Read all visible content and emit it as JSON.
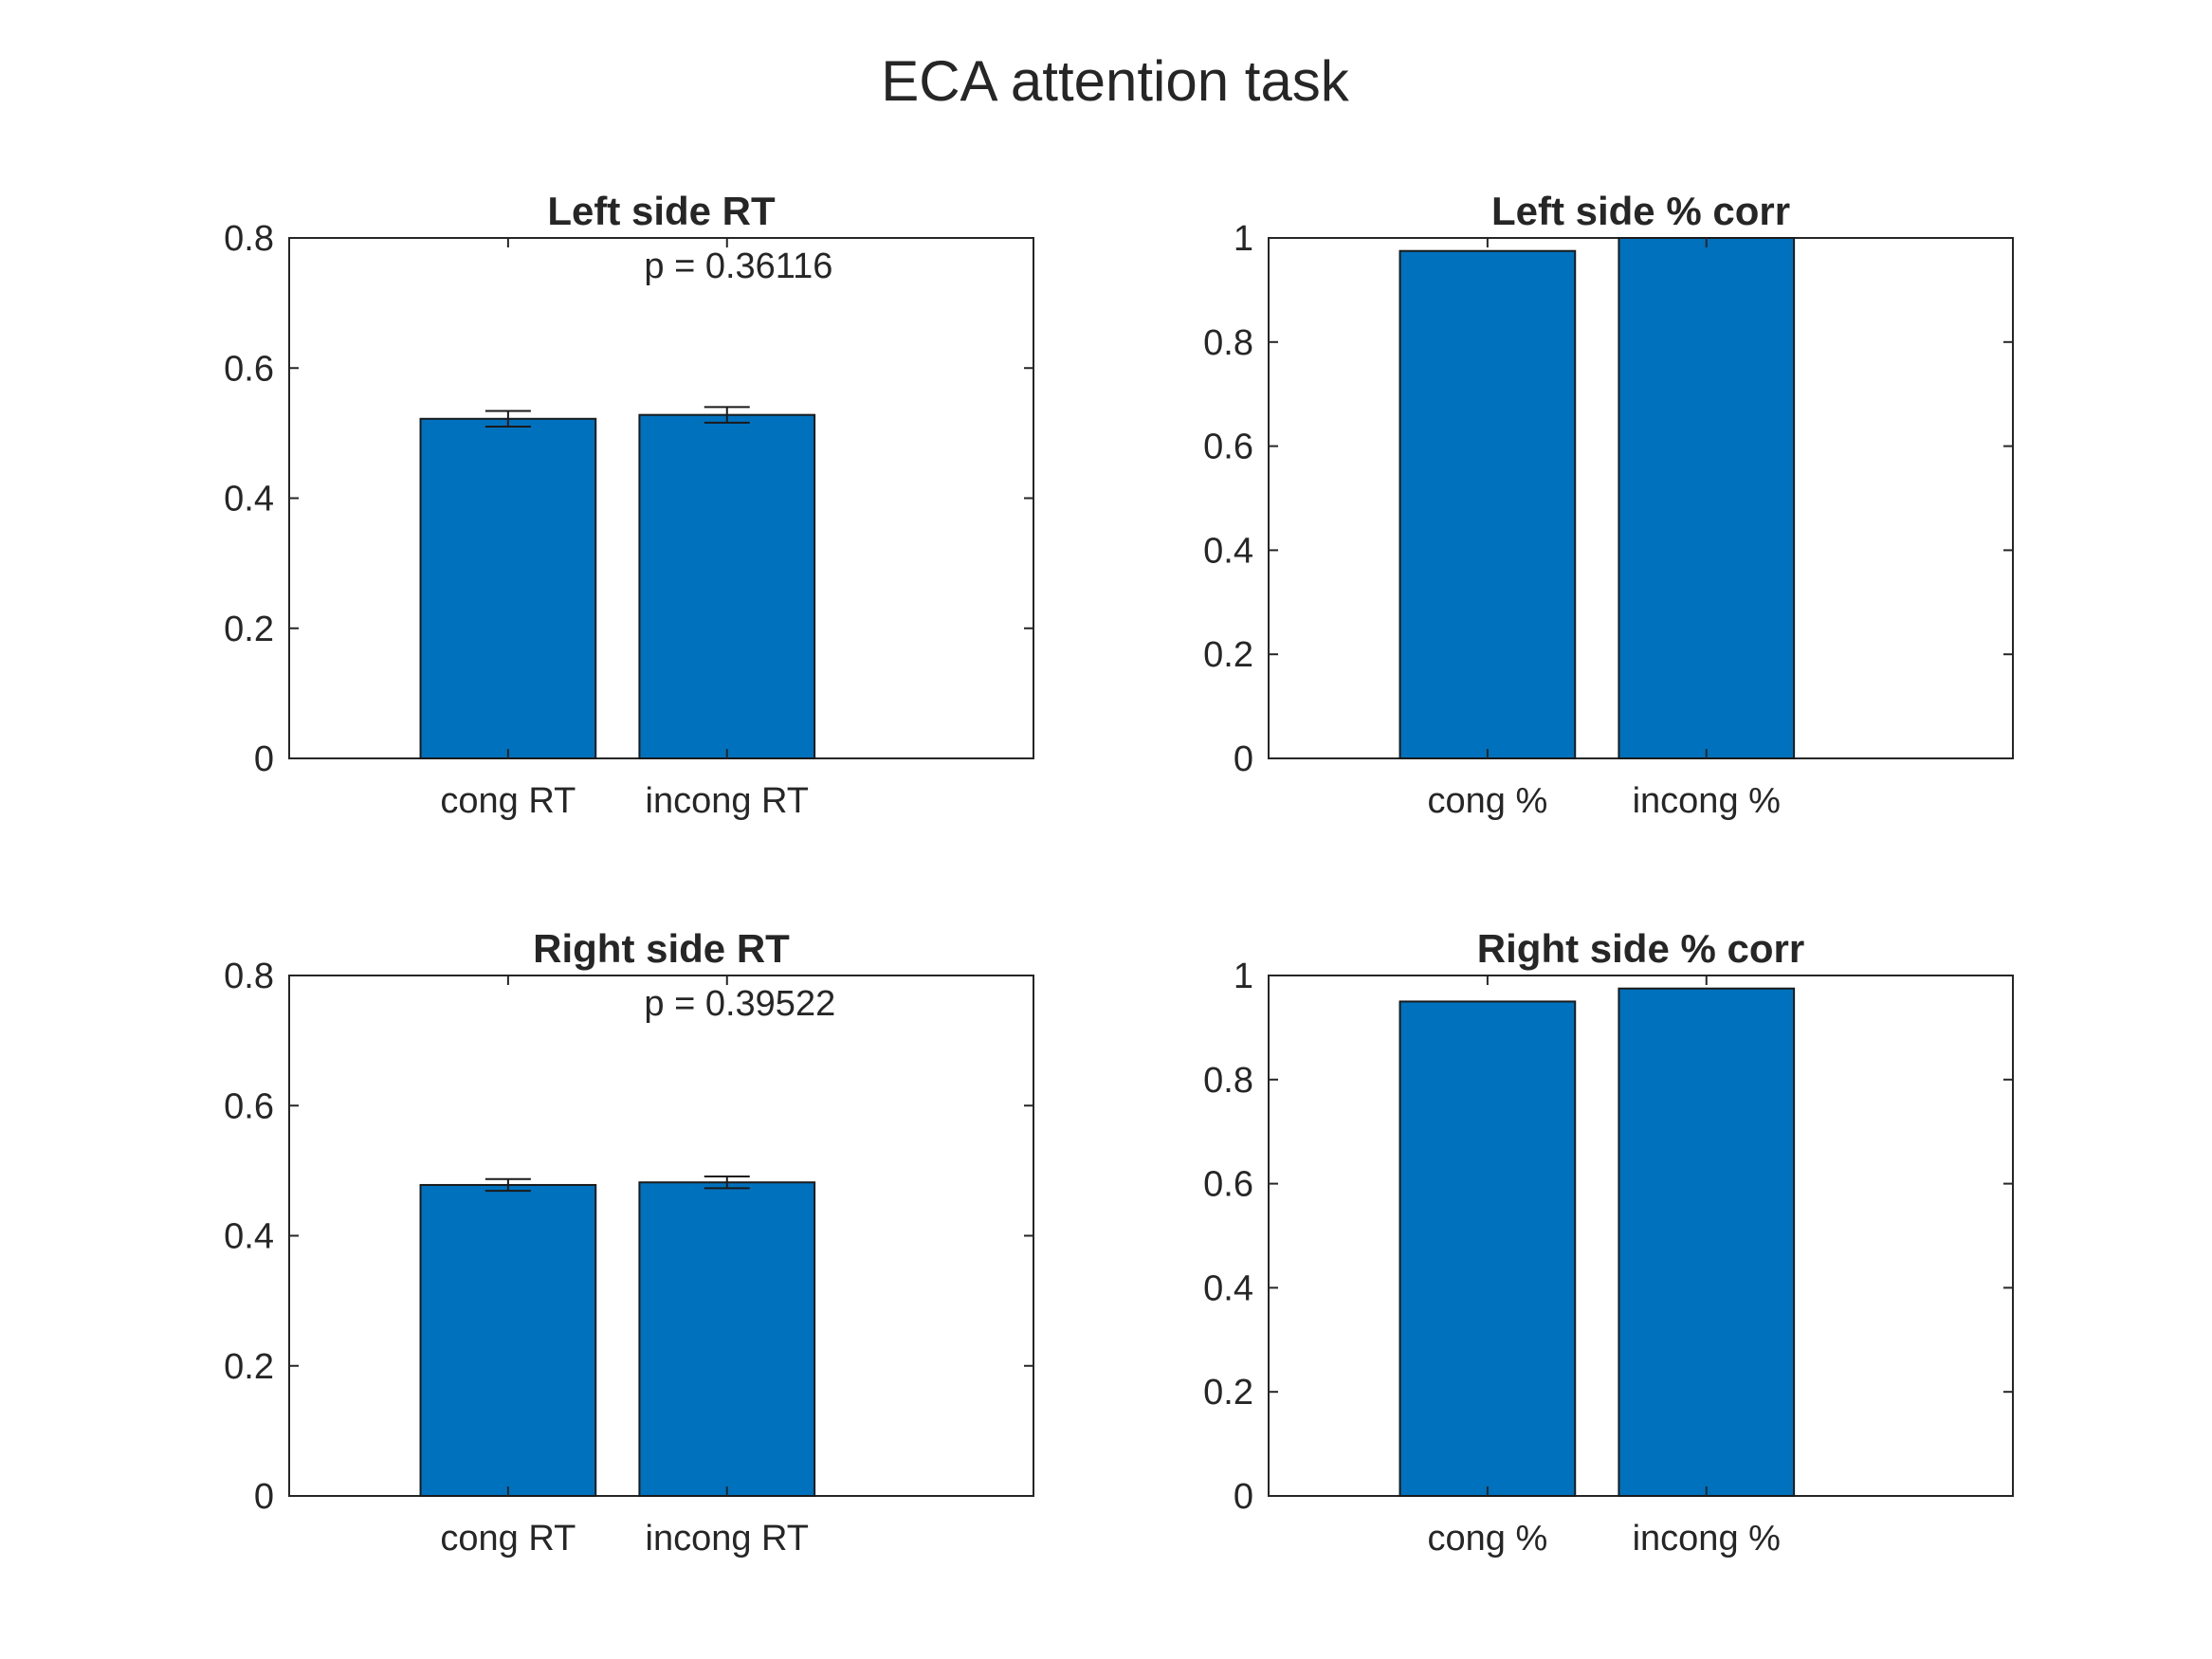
{
  "figure": {
    "title": "ECA attention task"
  },
  "colors": {
    "bar": "#0072BD",
    "axis": "#262626"
  },
  "chart_data": [
    {
      "type": "bar",
      "title": "Left side RT",
      "categories": [
        "cong RT",
        "incong RT"
      ],
      "values": [
        0.522,
        0.528
      ],
      "error": [
        0.012,
        0.012
      ],
      "ylim": [
        0,
        0.8
      ],
      "yticks": [
        "0",
        "0.2",
        "0.4",
        "0.6",
        "0.8"
      ],
      "annotation": "p = 0.36116",
      "xlabel": "",
      "ylabel": ""
    },
    {
      "type": "bar",
      "title": "Left side % corr",
      "categories": [
        "cong %",
        "incong %"
      ],
      "values": [
        0.975,
        1.0
      ],
      "error": null,
      "ylim": [
        0,
        1
      ],
      "yticks": [
        "0",
        "0.2",
        "0.4",
        "0.6",
        "0.8",
        "1"
      ],
      "annotation": "",
      "xlabel": "",
      "ylabel": ""
    },
    {
      "type": "bar",
      "title": "Right side RT",
      "categories": [
        "cong RT",
        "incong RT"
      ],
      "values": [
        0.478,
        0.482
      ],
      "error": [
        0.009,
        0.009
      ],
      "ylim": [
        0,
        0.8
      ],
      "yticks": [
        "0",
        "0.2",
        "0.4",
        "0.6",
        "0.8"
      ],
      "annotation": "p = 0.39522",
      "xlabel": "",
      "ylabel": ""
    },
    {
      "type": "bar",
      "title": "Right side % corr",
      "categories": [
        "cong %",
        "incong %"
      ],
      "values": [
        0.95,
        0.975
      ],
      "error": null,
      "ylim": [
        0,
        1
      ],
      "yticks": [
        "0",
        "0.2",
        "0.4",
        "0.6",
        "0.8",
        "1"
      ],
      "annotation": "",
      "xlabel": "",
      "ylabel": ""
    }
  ]
}
